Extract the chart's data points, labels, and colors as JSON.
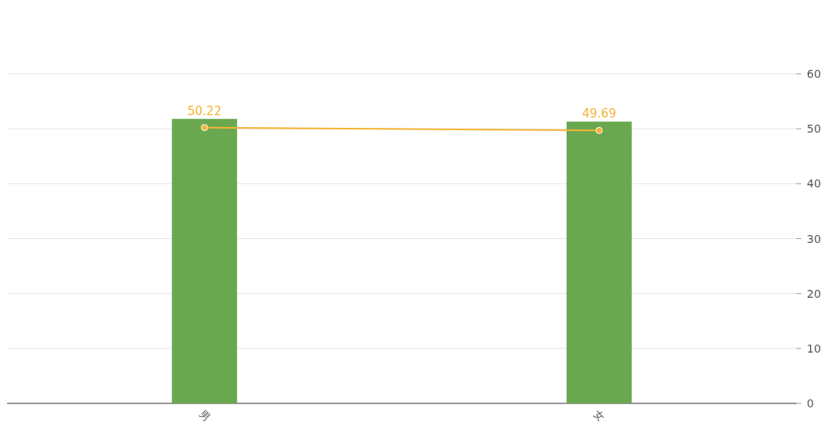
{
  "chart_data": {
    "type": "bar",
    "categories": [
      "男",
      "女"
    ],
    "series": [
      {
        "color": "#6aa84f",
        "values": [
          51.8,
          51.3
        ]
      },
      {
        "type": "line",
        "color": "#f5b335",
        "values": [
          50.22,
          49.69
        ],
        "value_labels": [
          "50.22",
          "49.69"
        ],
        "marker": "circle"
      }
    ],
    "ylim": [
      0,
      60
    ],
    "yticks": [
      0,
      10,
      20,
      30,
      40,
      50,
      60
    ],
    "grid": "y"
  }
}
